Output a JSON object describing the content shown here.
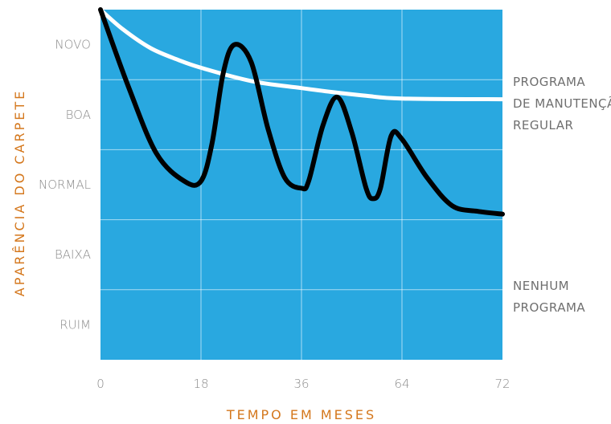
{
  "chart_data": {
    "type": "line",
    "xlabel": "TEMPO EM MESES",
    "ylabel": "APARÊNCIA DO CARPETE",
    "x_ticks": [
      "0",
      "18",
      "36",
      "64",
      "72"
    ],
    "y_categories": [
      "NOVO",
      "BOA",
      "NORMAL",
      "BAIXA",
      "RUIM"
    ],
    "series": [
      {
        "name": "PROGRAMA DE MANUTENÇÃO REGULAR",
        "label_lines": [
          "PROGRAMA",
          "DE MANUTENÇÃO",
          "REGULAR"
        ],
        "color": "#ffffff",
        "x": [
          0,
          4,
          9,
          14,
          18,
          27,
          36,
          45,
          54,
          64,
          72
        ],
        "y": [
          5.0,
          4.72,
          4.45,
          4.28,
          4.17,
          3.98,
          3.88,
          3.82,
          3.77,
          3.73,
          3.72
        ]
      },
      {
        "name": "NENHUM PROGRAMA",
        "label_lines": [
          "NENHUM",
          "PROGRAMA"
        ],
        "color": "#000000",
        "x": [
          0,
          5,
          10,
          15,
          18,
          20,
          22,
          24,
          27,
          30,
          33,
          36,
          38,
          42,
          46,
          50,
          54,
          56,
          58,
          61,
          64,
          66,
          68,
          70,
          72
        ],
        "y": [
          5.0,
          3.9,
          2.95,
          2.55,
          2.55,
          3.1,
          4.1,
          4.5,
          4.25,
          3.3,
          2.6,
          2.45,
          2.55,
          3.35,
          3.75,
          3.25,
          2.45,
          2.3,
          2.45,
          3.2,
          3.15,
          2.6,
          2.2,
          2.12,
          2.08
        ]
      }
    ],
    "background_color": "#29a8e0",
    "grid": true
  }
}
